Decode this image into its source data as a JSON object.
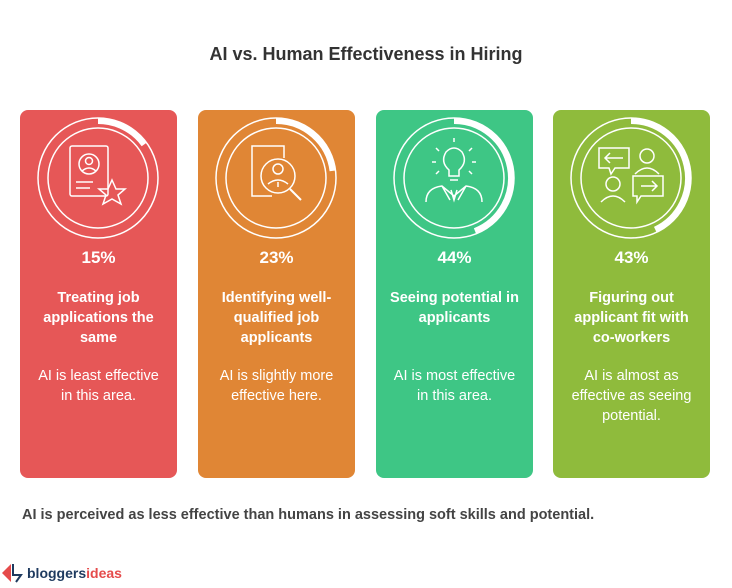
{
  "title": "AI vs. Human Effectiveness in Hiring",
  "cards": [
    {
      "percent_label": "15%",
      "value": 0.15,
      "heading": "Treating job applications the same",
      "description": "AI is least effective in this area.",
      "color": "#E65757",
      "icon": "resume-star-icon"
    },
    {
      "percent_label": "23%",
      "value": 0.23,
      "heading": "Identifying well-qualified job applicants",
      "description": "AI is slightly more effective here.",
      "color": "#E08635",
      "icon": "magnify-applicant-icon"
    },
    {
      "percent_label": "44%",
      "value": 0.44,
      "heading": "Seeing potential in applicants",
      "description": "AI is most effective in this area.",
      "color": "#3EC685",
      "icon": "lightbulb-person-icon"
    },
    {
      "percent_label": "43%",
      "value": 0.43,
      "heading": "Figuring out applicant fit with co-workers",
      "description": "AI is almost as effective as seeing potential.",
      "color": "#8FBB3C",
      "icon": "conversation-people-icon"
    }
  ],
  "footer_note": "AI is perceived as less effective than humans in assessing soft skills and potential.",
  "logo": {
    "text_dark": "bloggers",
    "text_accent": "ideas",
    "dark_color": "#1E3A5F",
    "accent_color": "#E54B4B"
  }
}
